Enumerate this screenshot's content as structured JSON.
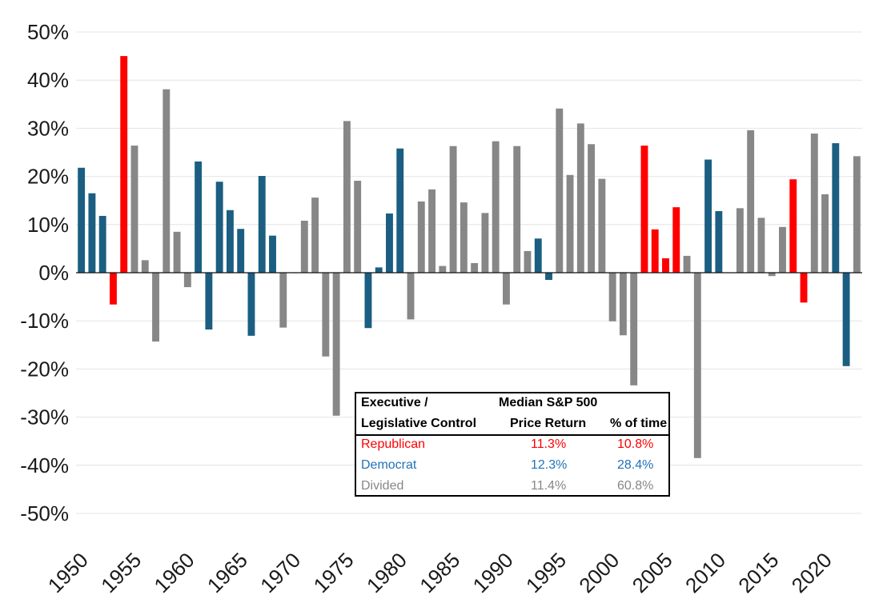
{
  "chart_data": {
    "type": "bar",
    "title": "",
    "xlabel": "",
    "ylabel": "",
    "ylim": [
      -50,
      50
    ],
    "ytick_labels": [
      "50%",
      "40%",
      "30%",
      "20%",
      "10%",
      "0%",
      "-10%",
      "-20%",
      "-30%",
      "-40%",
      "-50%"
    ],
    "ytick_values": [
      50,
      40,
      30,
      20,
      10,
      0,
      -10,
      -20,
      -30,
      -40,
      -50
    ],
    "xtick_labels": [
      "1950",
      "1955",
      "1960",
      "1965",
      "1970",
      "1975",
      "1980",
      "1985",
      "1990",
      "1995",
      "2000",
      "2005",
      "2010",
      "2015",
      "2020"
    ],
    "xtick_years": [
      1950,
      1955,
      1960,
      1965,
      1970,
      1975,
      1980,
      1985,
      1990,
      1995,
      2000,
      2005,
      2010,
      2015,
      2020
    ],
    "colors": {
      "R": "#ff0000",
      "D": "#1b5e82",
      "G": "#878787"
    },
    "bars": [
      {
        "year": 1950,
        "value": 21.8,
        "control": "D"
      },
      {
        "year": 1951,
        "value": 16.5,
        "control": "D"
      },
      {
        "year": 1952,
        "value": 11.8,
        "control": "D"
      },
      {
        "year": 1953,
        "value": -6.6,
        "control": "R"
      },
      {
        "year": 1954,
        "value": 45.0,
        "control": "R"
      },
      {
        "year": 1955,
        "value": 26.4,
        "control": "G"
      },
      {
        "year": 1956,
        "value": 2.6,
        "control": "G"
      },
      {
        "year": 1957,
        "value": -14.3,
        "control": "G"
      },
      {
        "year": 1958,
        "value": 38.1,
        "control": "G"
      },
      {
        "year": 1959,
        "value": 8.5,
        "control": "G"
      },
      {
        "year": 1960,
        "value": -3.0,
        "control": "G"
      },
      {
        "year": 1961,
        "value": 23.1,
        "control": "D"
      },
      {
        "year": 1962,
        "value": -11.8,
        "control": "D"
      },
      {
        "year": 1963,
        "value": 18.9,
        "control": "D"
      },
      {
        "year": 1964,
        "value": 13.0,
        "control": "D"
      },
      {
        "year": 1965,
        "value": 9.1,
        "control": "D"
      },
      {
        "year": 1966,
        "value": -13.1,
        "control": "D"
      },
      {
        "year": 1967,
        "value": 20.1,
        "control": "D"
      },
      {
        "year": 1968,
        "value": 7.7,
        "control": "D"
      },
      {
        "year": 1969,
        "value": -11.4,
        "control": "G"
      },
      {
        "year": 1970,
        "value": 0.1,
        "control": "G"
      },
      {
        "year": 1971,
        "value": 10.8,
        "control": "G"
      },
      {
        "year": 1972,
        "value": 15.6,
        "control": "G"
      },
      {
        "year": 1973,
        "value": -17.4,
        "control": "G"
      },
      {
        "year": 1974,
        "value": -29.7,
        "control": "G"
      },
      {
        "year": 1975,
        "value": 31.5,
        "control": "G"
      },
      {
        "year": 1976,
        "value": 19.1,
        "control": "G"
      },
      {
        "year": 1977,
        "value": -11.5,
        "control": "D"
      },
      {
        "year": 1978,
        "value": 1.1,
        "control": "D"
      },
      {
        "year": 1979,
        "value": 12.3,
        "control": "D"
      },
      {
        "year": 1980,
        "value": 25.8,
        "control": "D"
      },
      {
        "year": 1981,
        "value": -9.7,
        "control": "G"
      },
      {
        "year": 1982,
        "value": 14.8,
        "control": "G"
      },
      {
        "year": 1983,
        "value": 17.3,
        "control": "G"
      },
      {
        "year": 1984,
        "value": 1.4,
        "control": "G"
      },
      {
        "year": 1985,
        "value": 26.3,
        "control": "G"
      },
      {
        "year": 1986,
        "value": 14.6,
        "control": "G"
      },
      {
        "year": 1987,
        "value": 2.0,
        "control": "G"
      },
      {
        "year": 1988,
        "value": 12.4,
        "control": "G"
      },
      {
        "year": 1989,
        "value": 27.3,
        "control": "G"
      },
      {
        "year": 1990,
        "value": -6.6,
        "control": "G"
      },
      {
        "year": 1991,
        "value": 26.3,
        "control": "G"
      },
      {
        "year": 1992,
        "value": 4.5,
        "control": "G"
      },
      {
        "year": 1993,
        "value": 7.1,
        "control": "D"
      },
      {
        "year": 1994,
        "value": -1.5,
        "control": "D"
      },
      {
        "year": 1995,
        "value": 34.1,
        "control": "G"
      },
      {
        "year": 1996,
        "value": 20.3,
        "control": "G"
      },
      {
        "year": 1997,
        "value": 31.0,
        "control": "G"
      },
      {
        "year": 1998,
        "value": 26.7,
        "control": "G"
      },
      {
        "year": 1999,
        "value": 19.5,
        "control": "G"
      },
      {
        "year": 2000,
        "value": -10.1,
        "control": "G"
      },
      {
        "year": 2001,
        "value": -13.0,
        "control": "G"
      },
      {
        "year": 2002,
        "value": -23.4,
        "control": "G"
      },
      {
        "year": 2003,
        "value": 26.4,
        "control": "R"
      },
      {
        "year": 2004,
        "value": 9.0,
        "control": "R"
      },
      {
        "year": 2005,
        "value": 3.0,
        "control": "R"
      },
      {
        "year": 2006,
        "value": 13.6,
        "control": "R"
      },
      {
        "year": 2007,
        "value": 3.5,
        "control": "G"
      },
      {
        "year": 2008,
        "value": -38.5,
        "control": "G"
      },
      {
        "year": 2009,
        "value": 23.5,
        "control": "D"
      },
      {
        "year": 2010,
        "value": 12.8,
        "control": "D"
      },
      {
        "year": 2011,
        "value": 0.0,
        "control": "G"
      },
      {
        "year": 2012,
        "value": 13.4,
        "control": "G"
      },
      {
        "year": 2013,
        "value": 29.6,
        "control": "G"
      },
      {
        "year": 2014,
        "value": 11.4,
        "control": "G"
      },
      {
        "year": 2015,
        "value": -0.7,
        "control": "G"
      },
      {
        "year": 2016,
        "value": 9.5,
        "control": "G"
      },
      {
        "year": 2017,
        "value": 19.4,
        "control": "R"
      },
      {
        "year": 2018,
        "value": -6.2,
        "control": "R"
      },
      {
        "year": 2019,
        "value": 28.9,
        "control": "G"
      },
      {
        "year": 2020,
        "value": 16.3,
        "control": "G"
      },
      {
        "year": 2021,
        "value": 26.9,
        "control": "D"
      },
      {
        "year": 2022,
        "value": -19.4,
        "control": "D"
      },
      {
        "year": 2023,
        "value": 24.2,
        "control": "G"
      }
    ]
  },
  "legend": {
    "header_col1_line1": "Executive /",
    "header_col1_line2": "Legislative Control",
    "header_col2_line1": "Median S&P 500",
    "header_col2_line2": "Price Return",
    "header_col3": "% of time",
    "rows": [
      {
        "label": "Republican",
        "median": "11.3%",
        "pct": "10.8%",
        "color": "#ff0000"
      },
      {
        "label": "Democrat",
        "median": "12.3%",
        "pct": "28.4%",
        "color": "#1f72b8"
      },
      {
        "label": "Divided",
        "median": "11.4%",
        "pct": "60.8%",
        "color": "#878787"
      }
    ]
  }
}
